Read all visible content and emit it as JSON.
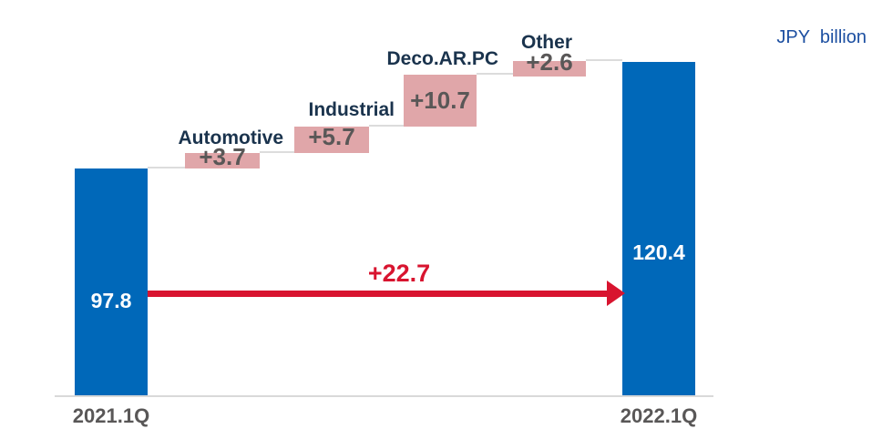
{
  "unit_note": "JPY  billion",
  "colors": {
    "bar_blue": "#0068b9",
    "bar_pink": "#e0a6a9",
    "value_gray": "#595757",
    "label_navy": "#1a334d",
    "arrow_red": "#d8142f",
    "unit_blue": "#1c4fa1",
    "connector_gray": "#dcdcdc",
    "axis_gray": "#d9d9d9"
  },
  "chart_data": {
    "type": "bar",
    "subtype": "waterfall",
    "unit": "JPY billion",
    "grid": false,
    "legend": false,
    "categories": [
      "2021.1Q",
      "Automotive",
      "Industrial",
      "Deco.AR.PC",
      "Other",
      "2022.1Q"
    ],
    "start": {
      "label": "2021.1Q",
      "value": 97.8,
      "display": "97.8"
    },
    "deltas": [
      {
        "label": "Automotive",
        "value": 3.7,
        "display": "+3.7"
      },
      {
        "label": "Industrial",
        "value": 5.7,
        "display": "+5.7"
      },
      {
        "label": "Deco.AR.PC",
        "value": 10.7,
        "display": "+10.7"
      },
      {
        "label": "Other",
        "value": 2.6,
        "display": "+2.6"
      }
    ],
    "end": {
      "label": "2022.1Q",
      "value": 120.4,
      "display": "120.4"
    },
    "total_change": {
      "value": 22.7,
      "display": "+22.7"
    }
  }
}
